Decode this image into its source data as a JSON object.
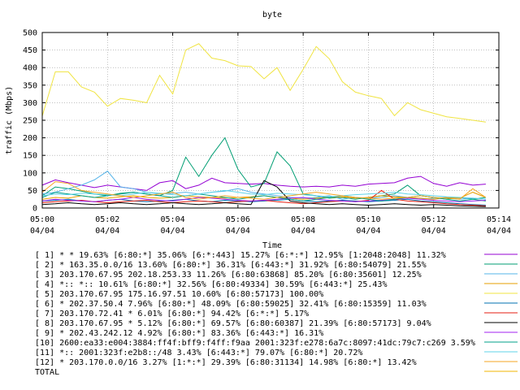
{
  "chart_data": {
    "type": "line",
    "title": "byte",
    "xlabel": "Time",
    "ylabel": "traffic (Mbps)",
    "ylim": [
      0,
      500
    ],
    "yticks": [
      0,
      50,
      100,
      150,
      200,
      250,
      300,
      350,
      400,
      450,
      500
    ],
    "xlim": [
      0,
      14
    ],
    "xticks": [
      {
        "x": 0,
        "time": "05:00",
        "date": "04/04"
      },
      {
        "x": 2,
        "time": "05:02",
        "date": "04/04"
      },
      {
        "x": 4,
        "time": "05:04",
        "date": "04/04"
      },
      {
        "x": 6,
        "time": "05:06",
        "date": "04/04"
      },
      {
        "x": 8,
        "time": "05:08",
        "date": "04/04"
      },
      {
        "x": 10,
        "time": "05:10",
        "date": "04/04"
      },
      {
        "x": 12,
        "time": "05:12",
        "date": "04/04"
      },
      {
        "x": 14,
        "time": "05:14",
        "date": "04/04"
      }
    ],
    "x": [
      0,
      0.4,
      0.8,
      1.2,
      1.6,
      2.0,
      2.4,
      2.8,
      3.2,
      3.6,
      4.0,
      4.4,
      4.8,
      5.2,
      5.6,
      6.0,
      6.4,
      6.8,
      7.2,
      7.6,
      8.0,
      8.4,
      8.8,
      9.2,
      9.6,
      10.0,
      10.4,
      10.8,
      11.2,
      11.6,
      12.0,
      12.4,
      12.8,
      13.2,
      13.6
    ],
    "series": [
      {
        "name": "[ 1] * * 19.63%  [6:80:*] 35.06% [6:*:443] 15.27% [6:*:*] 12.95% [1:2048:2048] 11.32%",
        "color": "#9400d3",
        "values": [
          65,
          80,
          72,
          65,
          58,
          65,
          60,
          55,
          50,
          72,
          78,
          55,
          65,
          85,
          72,
          70,
          68,
          70,
          65,
          62,
          60,
          62,
          60,
          65,
          62,
          68,
          70,
          72,
          85,
          90,
          70,
          62,
          72,
          65,
          68
        ]
      },
      {
        "name": "[ 2] * 163.35.0.0/16 13.60%  [6:80:*] 36.31% [6:443:*] 31.92% [6:80:54079] 21.55%",
        "color": "#009e73",
        "values": [
          35,
          60,
          55,
          48,
          40,
          35,
          42,
          45,
          40,
          35,
          50,
          145,
          90,
          150,
          200,
          110,
          60,
          70,
          160,
          120,
          40,
          35,
          28,
          30,
          25,
          30,
          35,
          40,
          65,
          35,
          30,
          25,
          30,
          25,
          20
        ]
      },
      {
        "name": "[ 3] 203.170.67.95 202.18.253.33 11.26%  [6:80:63868] 85.20% [6:80:35601] 12.25%",
        "color": "#56b4e9",
        "values": [
          40,
          45,
          55,
          65,
          80,
          105,
          60,
          55,
          45,
          40,
          42,
          45,
          40,
          45,
          48,
          55,
          45,
          40,
          35,
          30,
          28,
          30,
          35,
          25,
          30,
          28,
          30,
          35,
          30,
          25,
          28,
          30,
          25,
          28,
          25
        ]
      },
      {
        "name": "[ 4] *:: *:: 10.61%  [6:80:*] 32.56% [6:80:49334] 30.59% [6:443:*] 25.43%",
        "color": "#e69f00",
        "values": [
          25,
          30,
          28,
          35,
          30,
          28,
          32,
          35,
          30,
          28,
          30,
          35,
          32,
          30,
          28,
          30,
          32,
          35,
          30,
          28,
          25,
          28,
          30,
          32,
          28,
          30,
          35,
          32,
          30,
          28,
          25,
          30,
          28,
          45,
          30
        ]
      },
      {
        "name": "[ 5] 203.170.67.95 175.16.97.51 10.60%  [6:80:57173] 100.00%",
        "color": "#f0e442",
        "values": [
          262,
          388,
          388,
          345,
          330,
          290,
          312,
          307,
          300,
          378,
          325,
          450,
          468,
          427,
          420,
          405,
          403,
          368,
          400,
          335,
          395,
          460,
          425,
          360,
          330,
          320,
          312,
          263,
          300,
          280,
          270,
          260,
          255,
          250,
          245
        ]
      },
      {
        "name": "[ 6] * 202.37.50.4 7.96%  [6:80:*] 48.09% [6:80:59025] 32.41% [6:80:15359] 11.03%",
        "color": "#0072b2",
        "values": [
          20,
          22,
          25,
          20,
          18,
          22,
          25,
          20,
          18,
          20,
          22,
          25,
          20,
          18,
          22,
          20,
          18,
          20,
          22,
          25,
          20,
          18,
          20,
          22,
          20,
          18,
          20,
          22,
          25,
          20,
          18,
          15,
          12,
          10,
          8
        ]
      },
      {
        "name": "[ 7] 203.170.72.41 * 6.01%  [6:80:*] 94.42% [6:*:*] 5.17%",
        "color": "#e51e10",
        "values": [
          15,
          18,
          20,
          22,
          18,
          15,
          18,
          20,
          22,
          18,
          15,
          18,
          20,
          18,
          15,
          18,
          20,
          22,
          18,
          15,
          12,
          15,
          18,
          20,
          18,
          22,
          50,
          25,
          20,
          18,
          15,
          12,
          10,
          8,
          6
        ]
      },
      {
        "name": "[ 8] 203.170.67.95 * 5.12%  [6:80:*] 69.57% [6:80:60387] 21.39% [6:80:57173] 9.04%",
        "color": "#000000",
        "values": [
          10,
          12,
          15,
          12,
          10,
          12,
          15,
          12,
          10,
          12,
          15,
          12,
          10,
          12,
          15,
          12,
          10,
          78,
          60,
          20,
          15,
          12,
          10,
          12,
          10,
          8,
          10,
          12,
          10,
          8,
          10,
          8,
          6,
          5,
          4
        ]
      },
      {
        "name": "[ 9] * 202.43.242.12 4.92%  [6:80:*] 83.36% [6:443:*] 16.31%",
        "color": "#a020f0",
        "values": [
          20,
          25,
          22,
          20,
          18,
          22,
          25,
          30,
          25,
          22,
          20,
          25,
          30,
          28,
          25,
          22,
          20,
          22,
          25,
          28,
          30,
          25,
          22,
          20,
          18,
          20,
          22,
          25,
          28,
          25,
          22,
          20,
          18,
          20,
          22
        ]
      },
      {
        "name": "[10] 2600:ea33:e004:3884:ff4f:bff9:f4ff:f9aa 2001:323f:e278:6a7c:8097:41dc:79c7:c269 3.59%",
        "color": "#00a08a",
        "values": [
          30,
          45,
          40,
          35,
          30,
          35,
          40,
          45,
          40,
          35,
          30,
          35,
          40,
          35,
          30,
          25,
          30,
          35,
          30,
          25,
          20,
          25,
          30,
          35,
          30,
          25,
          20,
          25,
          30,
          35,
          30,
          25,
          20,
          25,
          30
        ]
      },
      {
        "name": "[11] *:: 2001:323f:e2b8::/48 3.43%  [6:443:*] 79.07% [6:80:*] 20.72%",
        "color": "#5fd3e8",
        "values": [
          35,
          40,
          38,
          42,
          40,
          38,
          35,
          40,
          45,
          42,
          38,
          35,
          40,
          45,
          50,
          45,
          40,
          38,
          42,
          40,
          38,
          35,
          32,
          35,
          38,
          40,
          42,
          45,
          40,
          38,
          35,
          32,
          30,
          28,
          25
        ]
      },
      {
        "name": "[12] * 203.170.0.0/16 3.27%  [1:*:*] 29.39% [6:80:31134] 14.98% [6:80:*] 13.42%",
        "color": "#f5a623",
        "values": [
          45,
          75,
          70,
          50,
          45,
          40,
          35,
          30,
          35,
          40,
          45,
          30,
          25,
          30,
          35,
          30,
          28,
          25,
          30,
          35,
          40,
          45,
          40,
          35,
          30,
          28,
          25,
          28,
          30,
          35,
          30,
          28,
          25,
          55,
          30
        ]
      }
    ],
    "total_label": "TOTAL",
    "total_color": "#f2b400"
  }
}
